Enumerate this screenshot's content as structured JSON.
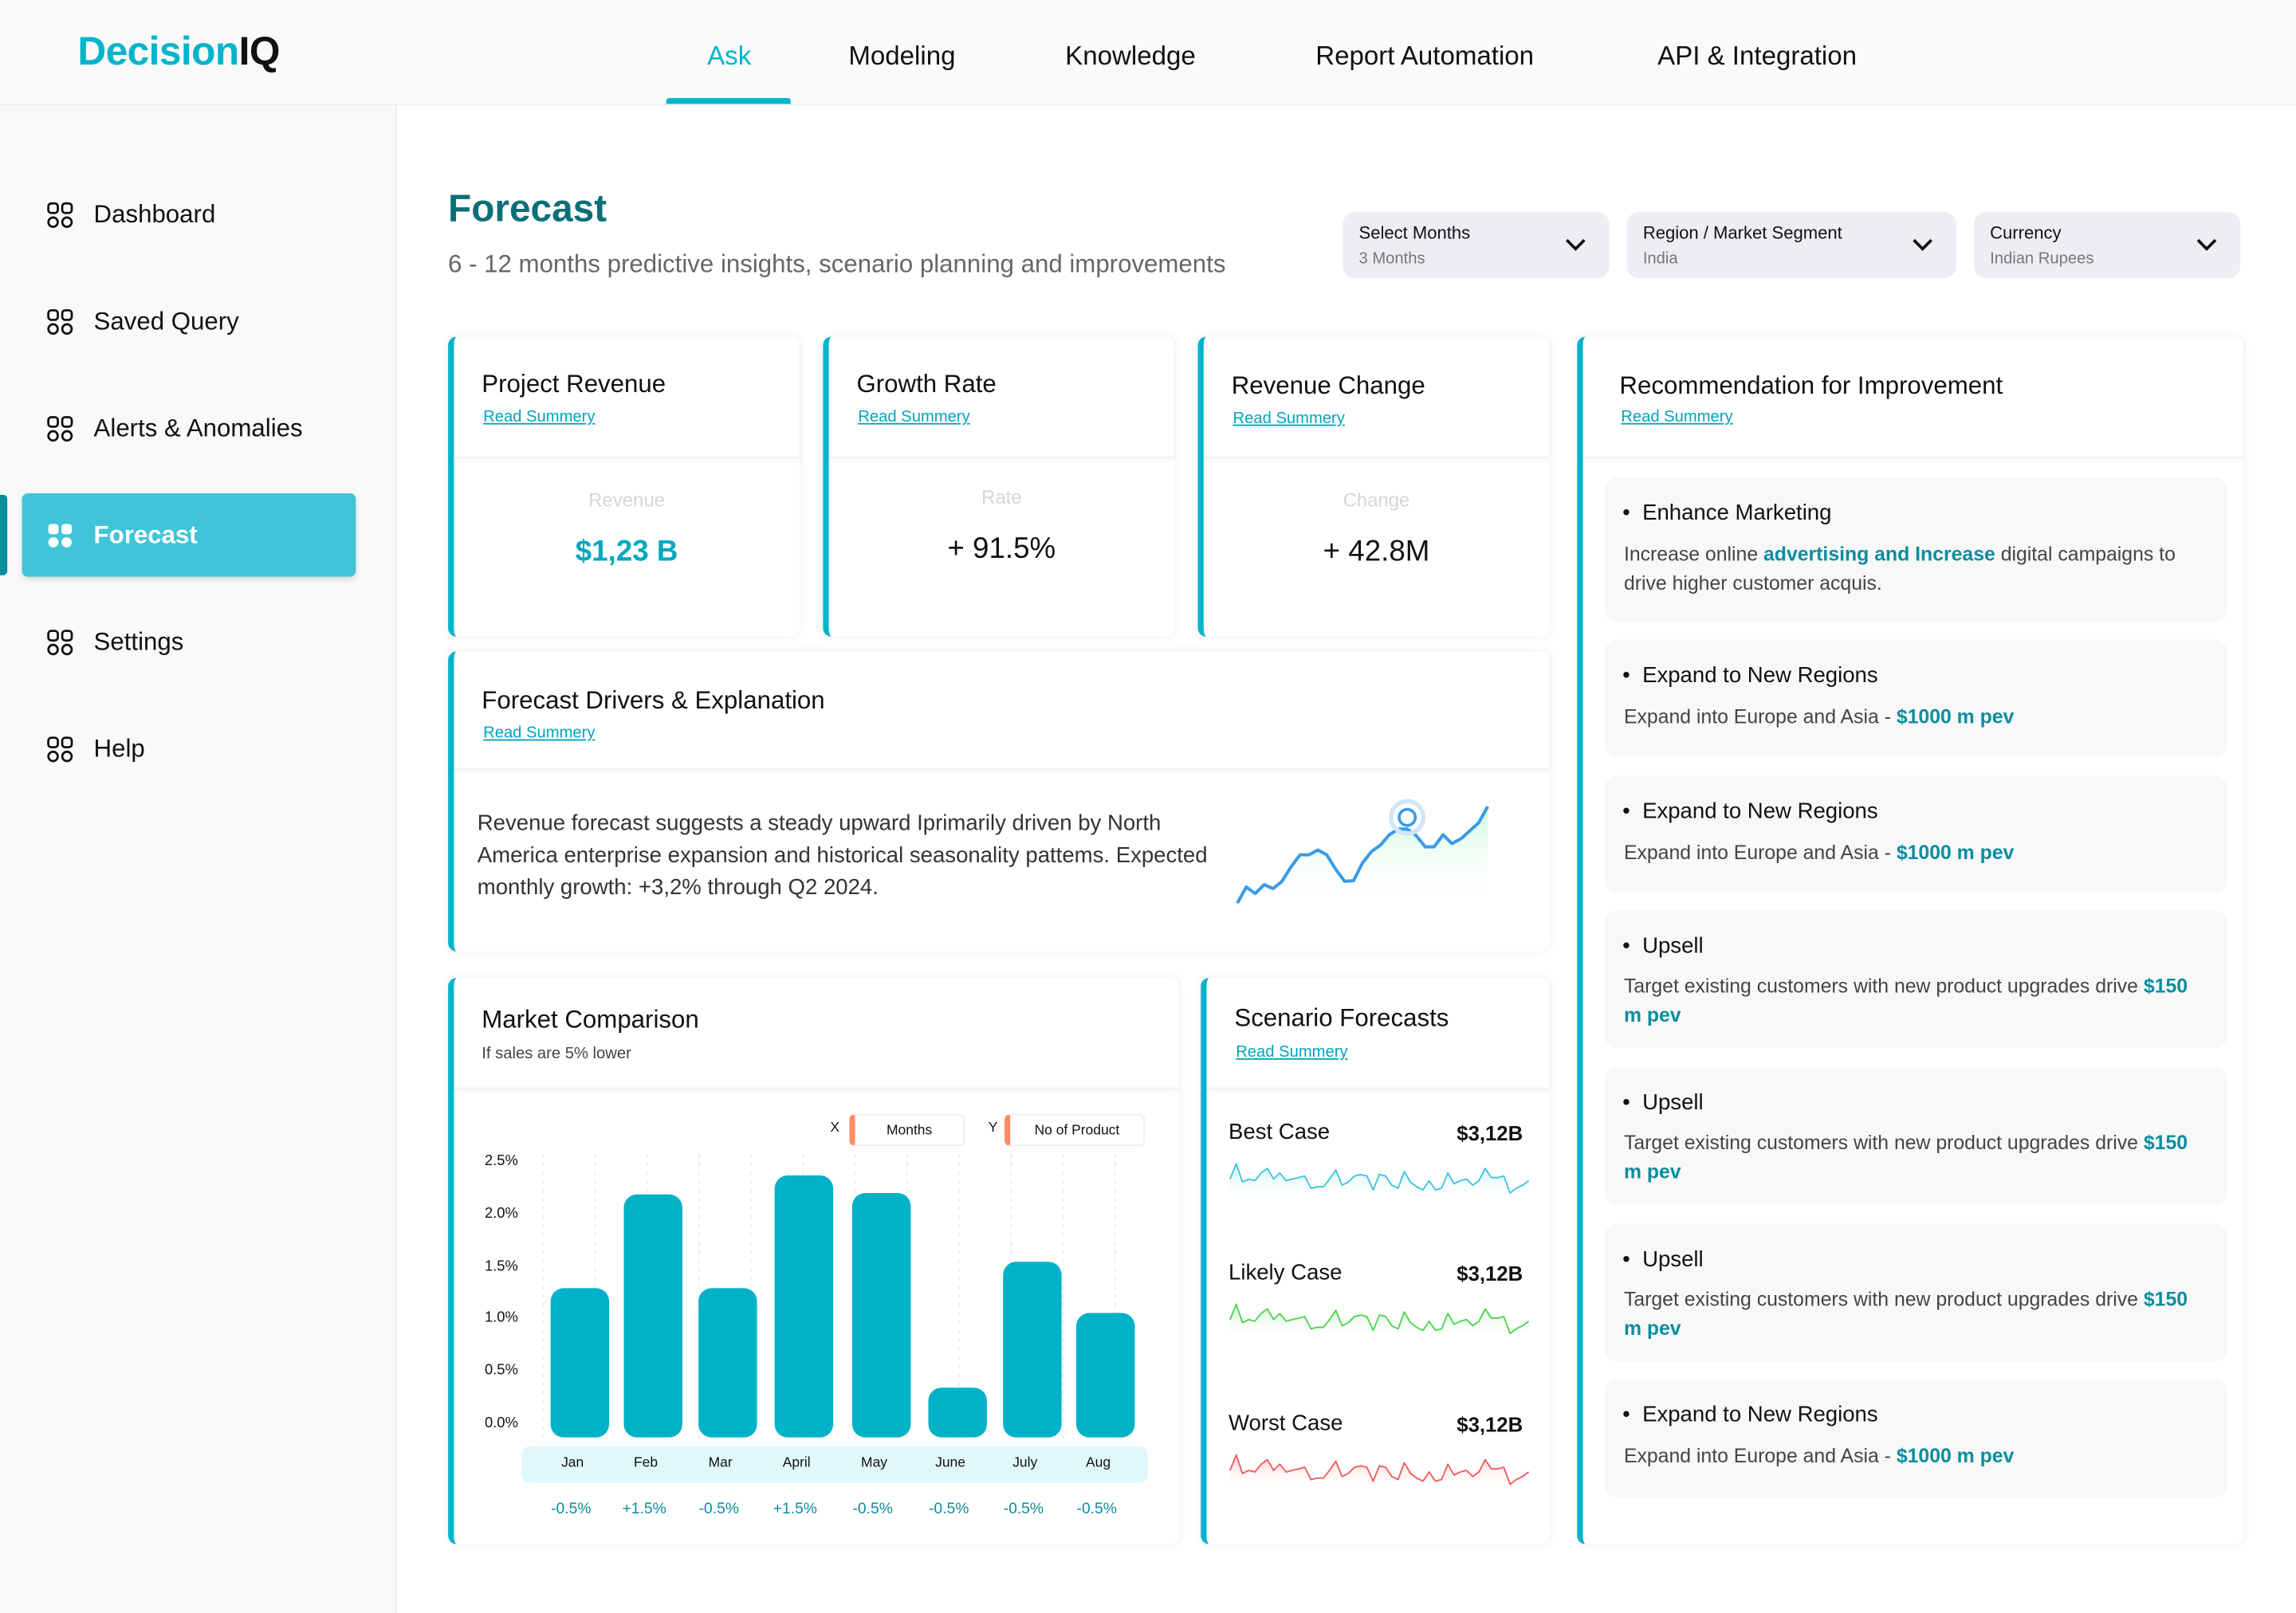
{
  "brand": {
    "part1": "Decision",
    "part2": "IQ"
  },
  "nav": [
    {
      "label": "Ask",
      "active": true
    },
    {
      "label": "Modeling"
    },
    {
      "label": "Knowledge"
    },
    {
      "label": "Report Automation"
    },
    {
      "label": "API & Integration"
    }
  ],
  "sidebar": {
    "items": [
      {
        "label": "Dashboard",
        "icon": "grid-icon"
      },
      {
        "label": "Saved Query",
        "icon": "grid-icon"
      },
      {
        "label": "Alerts & Anomalies",
        "icon": "grid-icon"
      },
      {
        "label": "Forecast",
        "icon": "grid-icon",
        "active": true
      },
      {
        "label": "Settings",
        "icon": "grid-icon"
      },
      {
        "label": "Help",
        "icon": "grid-icon"
      }
    ]
  },
  "page": {
    "title": "Forecast",
    "subtitle": "6 - 12 months predictive insights, scenario planning and improvements"
  },
  "filters": [
    {
      "label": "Select Months",
      "value": "3 Months"
    },
    {
      "label": "Region / Market Segment",
      "value": "India"
    },
    {
      "label": "Currency",
      "value": "Indian Rupees"
    }
  ],
  "kpis": [
    {
      "title": "Project Revenue",
      "link": "Read Summery",
      "label": "Revenue",
      "value": "$1,23 B",
      "accent": true
    },
    {
      "title": "Growth Rate",
      "link": "Read Summery",
      "label": "Rate",
      "value": "+ 91.5%"
    },
    {
      "title": "Revenue Change",
      "link": "Read Summery",
      "label": "Change",
      "value": "+ 42.8M"
    }
  ],
  "drivers": {
    "title": "Forecast Drivers & Explanation",
    "link": "Read Summery",
    "text": "Revenue forecast suggests a steady upward Iprimarily driven by North America enterprise expansion and historical seasonality pattems. Expected monthly growth: +3,2% through Q2 2024.",
    "sparkline": [
      0,
      0.2,
      0.12,
      0.23,
      0.18,
      0.27,
      0.45,
      0.6,
      0.6,
      0.66,
      0.6,
      0.42,
      0.27,
      0.28,
      0.5,
      0.64,
      0.72,
      0.85,
      0.92,
      0.92,
      0.84,
      0.7,
      0.7,
      0.85,
      0.74,
      0.8,
      0.9,
      1.0,
      1.2
    ]
  },
  "market": {
    "title": "Market Comparison",
    "subtitle": "If sales are 5% lower",
    "legend": {
      "x_key": "X",
      "x_label": "Months",
      "y_key": "Y",
      "y_label": "No of Product"
    }
  },
  "chart_data": {
    "type": "bar",
    "categories": [
      "Jan",
      "Feb",
      "Mar",
      "April",
      "May",
      "June",
      "July",
      "Aug"
    ],
    "values": [
      1.27,
      2.13,
      1.26,
      2.3,
      2.14,
      0.35,
      1.5,
      1.03
    ],
    "yticks": [
      "2.5%",
      "2.0%",
      "1.5%",
      "1.0%",
      "0.5%",
      "0.0%"
    ],
    "ylim": [
      0,
      2.5
    ],
    "changes": [
      "-0.5%",
      "+1.5%",
      "-0.5%",
      "+1.5%",
      "-0.5%",
      "-0.5%",
      "-0.5%",
      "-0.5%"
    ],
    "color": "#00b2c8"
  },
  "scenarios": {
    "title": "Scenario Forecasts",
    "link": "Read Summery",
    "items": [
      {
        "label": "Best Case",
        "value": "$3,12B",
        "color": "#3cc4dc"
      },
      {
        "label": "Likely Case",
        "value": "$3,12B",
        "color": "#4cd44c"
      },
      {
        "label": "Worst Case",
        "value": "$3,12B",
        "color": "#f05a5a"
      }
    ],
    "sparkline": [
      0.5,
      1,
      0.4,
      0.5,
      0.45,
      0.7,
      0.85,
      0.5,
      0.7,
      0.45,
      0.5,
      0.55,
      0.6,
      0.2,
      0.25,
      0.25,
      0.5,
      0.8,
      0.3,
      0.4,
      0.6,
      0.65,
      0.6,
      0.15,
      0.65,
      0.6,
      0.3,
      0.2,
      0.75,
      0.4,
      0.25,
      0.15,
      0.45,
      0.15,
      0.2,
      0.7,
      0.35,
      0.45,
      0.5,
      0.3,
      0.45,
      0.85,
      0.55,
      0.55,
      0.6,
      0.05,
      0.2,
      0.3,
      0.45
    ]
  },
  "recommendations": {
    "title": "Recommendation for Improvement",
    "link": "Read Summery",
    "items": [
      {
        "title": "Enhance Marketing",
        "pre": "Increase online ",
        "hl": "advertising and Increase",
        "post": " digital campaigns to drive higher customer acquis."
      },
      {
        "title": "Expand to New Regions",
        "pre": "Expand into Europe and Asia - ",
        "hl": "$1000 m pev",
        "post": ""
      },
      {
        "title": "Expand to New Regions",
        "pre": "Expand into Europe and Asia - ",
        "hl": "$1000 m pev",
        "post": ""
      },
      {
        "title": "Upsell",
        "pre": "Target existing customers with new product upgrades drive ",
        "hl": "$150 m pev",
        "post": ""
      },
      {
        "title": "Upsell",
        "pre": "Target existing customers with new product upgrades drive ",
        "hl": "$150 m pev",
        "post": ""
      },
      {
        "title": "Upsell",
        "pre": "Target existing customers with new product upgrades drive ",
        "hl": "$150 m pev",
        "post": ""
      },
      {
        "title": "Expand to New Regions",
        "pre": "Expand into Europe and Asia - ",
        "hl": "$1000 m pev",
        "post": ""
      }
    ]
  }
}
